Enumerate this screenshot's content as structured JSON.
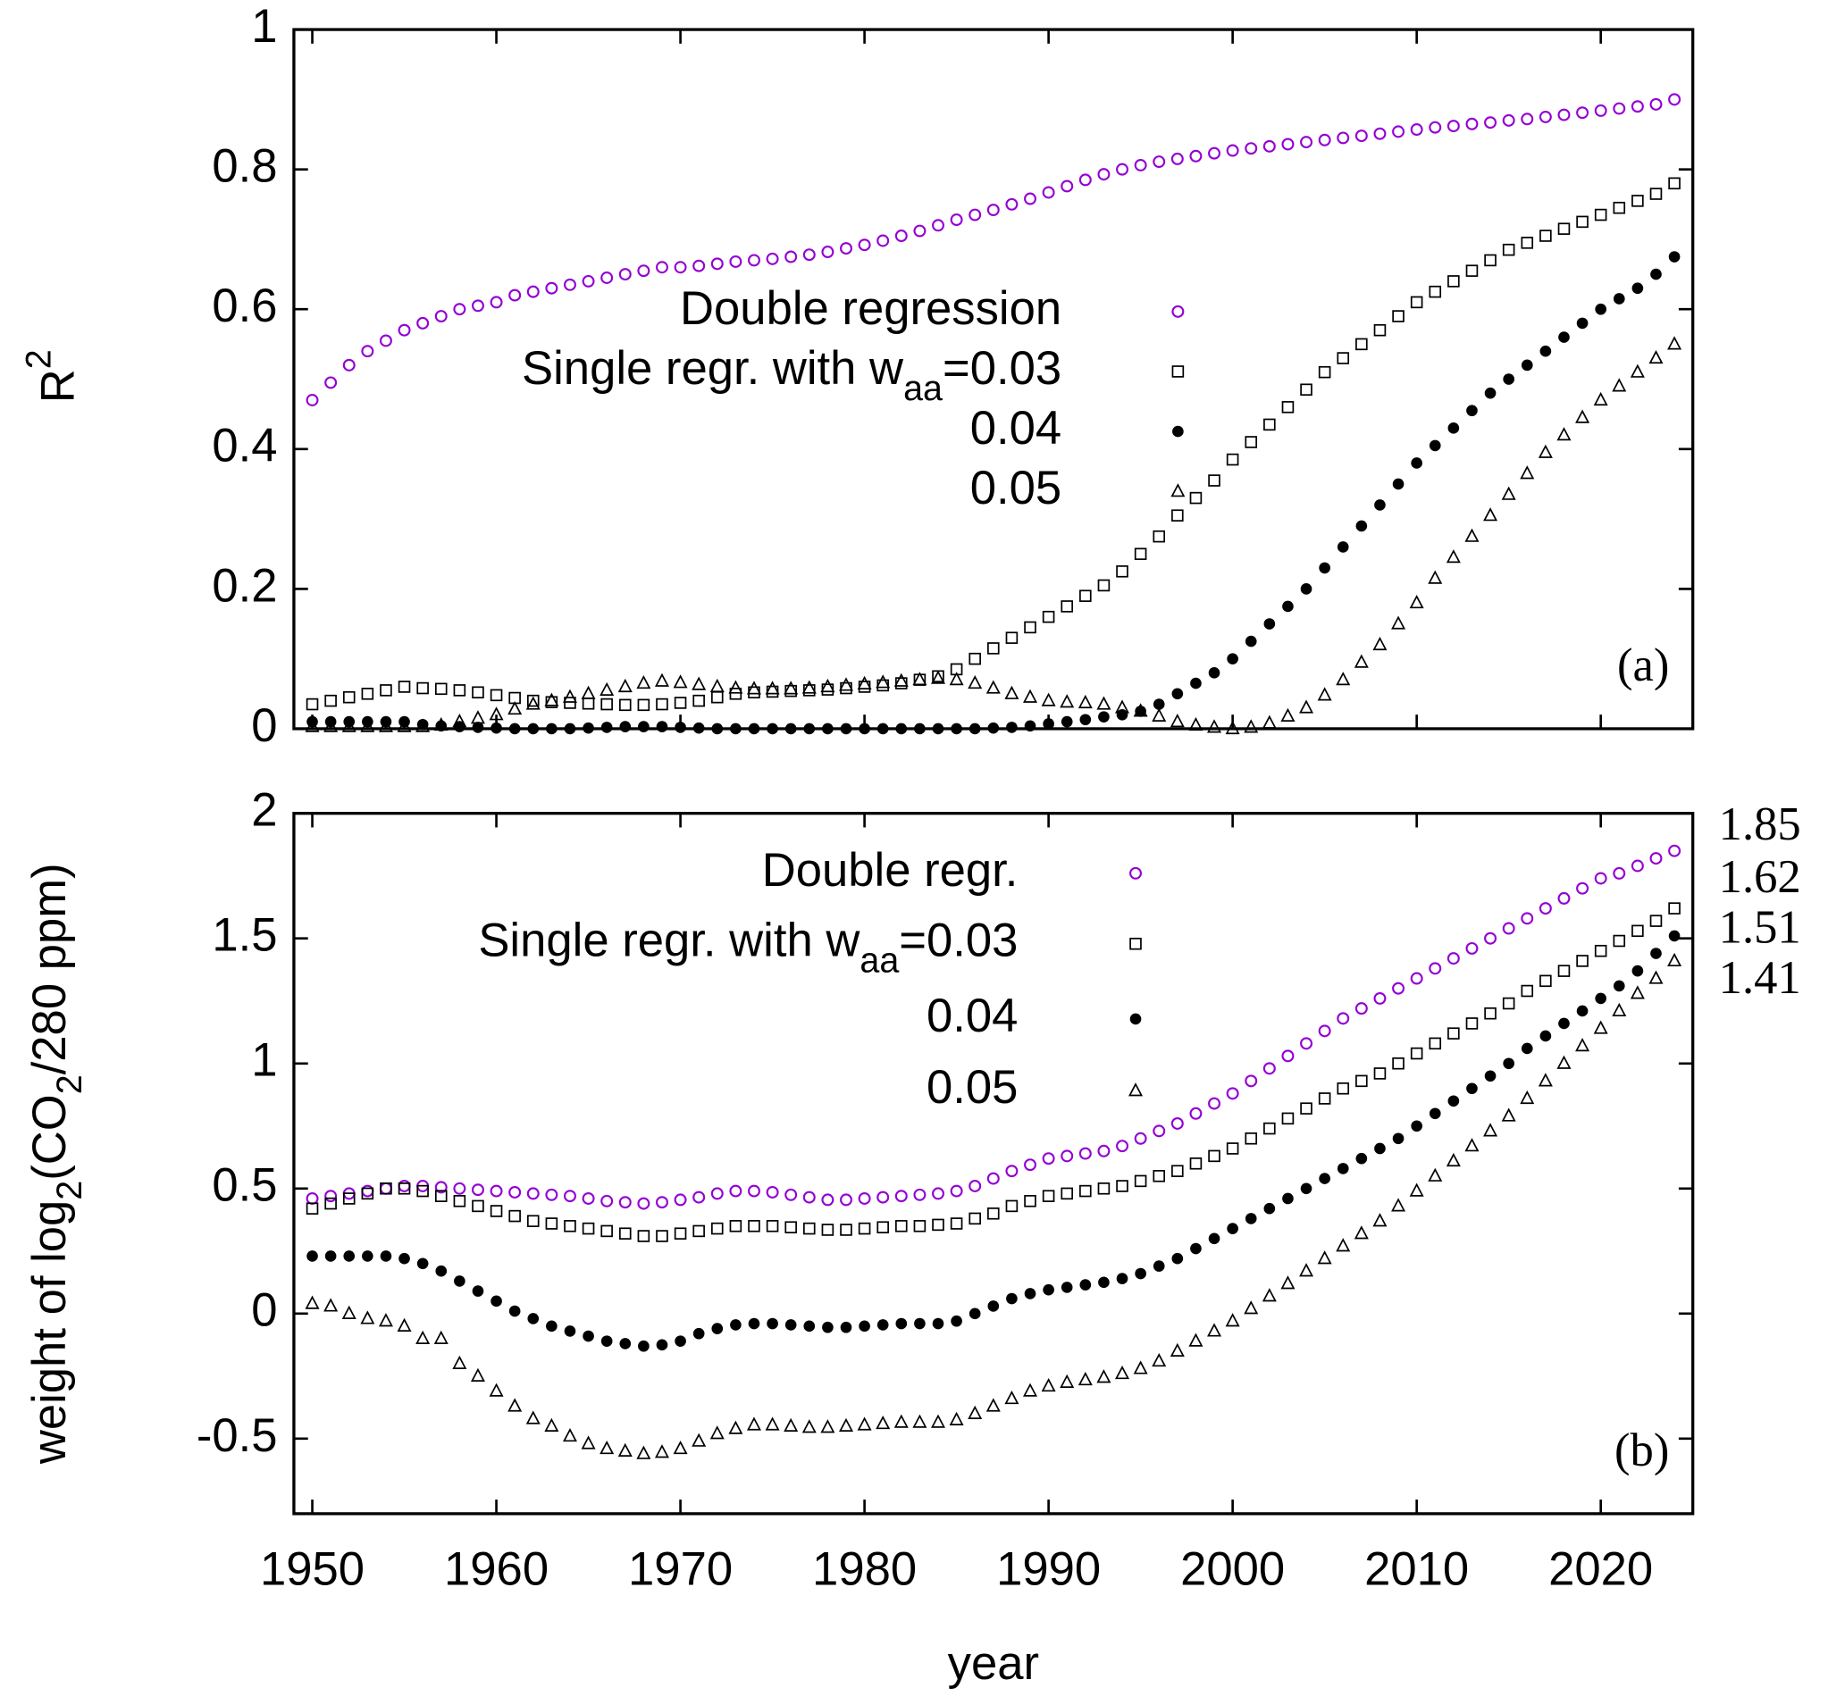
{
  "chart_data": [
    {
      "type": "scatter",
      "panel_label": "(a)",
      "ylabel": [
        {
          "text": "R"
        },
        {
          "text": "2",
          "sup": true
        }
      ],
      "x": [
        1950,
        1951,
        1952,
        1953,
        1954,
        1955,
        1956,
        1957,
        1958,
        1959,
        1960,
        1961,
        1962,
        1963,
        1964,
        1965,
        1966,
        1967,
        1968,
        1969,
        1970,
        1971,
        1972,
        1973,
        1974,
        1975,
        1976,
        1977,
        1978,
        1979,
        1980,
        1981,
        1982,
        1983,
        1984,
        1985,
        1986,
        1987,
        1988,
        1989,
        1990,
        1991,
        1992,
        1993,
        1994,
        1995,
        1996,
        1997,
        1998,
        1999,
        2000,
        2001,
        2002,
        2003,
        2004,
        2005,
        2006,
        2007,
        2008,
        2009,
        2010,
        2011,
        2012,
        2013,
        2014,
        2015,
        2016,
        2017,
        2018,
        2019,
        2020,
        2021,
        2022,
        2023,
        2024
      ],
      "xlim": [
        1949,
        2025
      ],
      "xticks": [
        1950,
        1960,
        1970,
        1980,
        1990,
        2000,
        2010,
        2020
      ],
      "xtick_labels": false,
      "ylim": [
        0,
        1
      ],
      "yticks": [
        0,
        0.2,
        0.4,
        0.6,
        0.8,
        1
      ],
      "series": [
        {
          "name": [
            {
              "text": "Double regression"
            }
          ],
          "color": "#9400d3",
          "marker": "circle",
          "values": [
            0.47,
            0.495,
            0.52,
            0.54,
            0.555,
            0.57,
            0.58,
            0.59,
            0.6,
            0.605,
            0.61,
            0.62,
            0.625,
            0.63,
            0.635,
            0.64,
            0.645,
            0.65,
            0.655,
            0.66,
            0.66,
            0.662,
            0.665,
            0.668,
            0.67,
            0.672,
            0.675,
            0.678,
            0.682,
            0.687,
            0.692,
            0.698,
            0.705,
            0.712,
            0.72,
            0.728,
            0.735,
            0.742,
            0.75,
            0.758,
            0.767,
            0.776,
            0.785,
            0.793,
            0.8,
            0.806,
            0.811,
            0.815,
            0.819,
            0.823,
            0.827,
            0.83,
            0.833,
            0.836,
            0.839,
            0.842,
            0.845,
            0.848,
            0.851,
            0.854,
            0.857,
            0.86,
            0.862,
            0.865,
            0.867,
            0.87,
            0.872,
            0.875,
            0.878,
            0.881,
            0.884,
            0.887,
            0.89,
            0.893,
            0.9
          ]
        },
        {
          "name": [
            {
              "text": "Single regr. with w"
            },
            {
              "text": "aa",
              "sub": true
            },
            {
              "text": "=0.03"
            }
          ],
          "color": "#000000",
          "marker": "square",
          "values": [
            0.035,
            0.04,
            0.045,
            0.05,
            0.055,
            0.06,
            0.058,
            0.057,
            0.055,
            0.052,
            0.048,
            0.044,
            0.04,
            0.038,
            0.037,
            0.036,
            0.035,
            0.034,
            0.034,
            0.035,
            0.037,
            0.04,
            0.045,
            0.05,
            0.052,
            0.053,
            0.054,
            0.055,
            0.056,
            0.058,
            0.06,
            0.062,
            0.065,
            0.07,
            0.075,
            0.085,
            0.1,
            0.115,
            0.13,
            0.145,
            0.16,
            0.175,
            0.19,
            0.205,
            0.225,
            0.25,
            0.275,
            0.305,
            0.33,
            0.355,
            0.385,
            0.41,
            0.435,
            0.46,
            0.485,
            0.51,
            0.53,
            0.55,
            0.57,
            0.59,
            0.61,
            0.625,
            0.64,
            0.655,
            0.67,
            0.685,
            0.695,
            0.705,
            0.715,
            0.725,
            0.735,
            0.745,
            0.755,
            0.765,
            0.78
          ]
        },
        {
          "name": [
            {
              "text": "0.04"
            }
          ],
          "color": "#000000",
          "marker": "dot",
          "values": [
            0.01,
            0.01,
            0.01,
            0.01,
            0.01,
            0.01,
            0.006,
            0.004,
            0.003,
            0.002,
            0.001,
            0,
            0,
            0,
            0,
            0.001,
            0.002,
            0.003,
            0.003,
            0.003,
            0.002,
            0.001,
            0,
            0,
            0,
            0,
            0,
            0,
            0,
            0,
            0,
            0,
            0,
            0,
            0,
            0,
            0,
            0.001,
            0.002,
            0.004,
            0.007,
            0.01,
            0.013,
            0.017,
            0.02,
            0.025,
            0.035,
            0.05,
            0.065,
            0.08,
            0.1,
            0.125,
            0.15,
            0.175,
            0.2,
            0.23,
            0.26,
            0.29,
            0.32,
            0.35,
            0.38,
            0.405,
            0.43,
            0.455,
            0.48,
            0.5,
            0.52,
            0.54,
            0.56,
            0.58,
            0.6,
            0.615,
            0.63,
            0.65,
            0.675
          ]
        },
        {
          "name": [
            {
              "text": "0.05"
            }
          ],
          "color": "#000000",
          "marker": "triangle",
          "values": [
            0.003,
            0.003,
            0.003,
            0.003,
            0.003,
            0.003,
            0.003,
            0.005,
            0.01,
            0.015,
            0.02,
            0.028,
            0.035,
            0.04,
            0.045,
            0.05,
            0.055,
            0.06,
            0.065,
            0.068,
            0.066,
            0.063,
            0.06,
            0.058,
            0.057,
            0.057,
            0.057,
            0.058,
            0.06,
            0.062,
            0.064,
            0.066,
            0.068,
            0.07,
            0.072,
            0.07,
            0.065,
            0.058,
            0.05,
            0.045,
            0.04,
            0.038,
            0.037,
            0.035,
            0.03,
            0.025,
            0.018,
            0.01,
            0.005,
            0.002,
            0,
            0.002,
            0.008,
            0.018,
            0.03,
            0.048,
            0.07,
            0.095,
            0.12,
            0.15,
            0.18,
            0.215,
            0.245,
            0.275,
            0.305,
            0.335,
            0.365,
            0.395,
            0.42,
            0.445,
            0.47,
            0.49,
            0.51,
            0.53,
            0.55
          ]
        }
      ]
    },
    {
      "type": "scatter",
      "panel_label": "(b)",
      "xlabel": "year",
      "ylabel": [
        {
          "text": "weight of log"
        },
        {
          "text": "2",
          "sub": true
        },
        {
          "text": "(CO"
        },
        {
          "text": "2",
          "sub": true
        },
        {
          "text": "/280 ppm)"
        }
      ],
      "x": [
        1950,
        1951,
        1952,
        1953,
        1954,
        1955,
        1956,
        1957,
        1958,
        1959,
        1960,
        1961,
        1962,
        1963,
        1964,
        1965,
        1966,
        1967,
        1968,
        1969,
        1970,
        1971,
        1972,
        1973,
        1974,
        1975,
        1976,
        1977,
        1978,
        1979,
        1980,
        1981,
        1982,
        1983,
        1984,
        1985,
        1986,
        1987,
        1988,
        1989,
        1990,
        1991,
        1992,
        1993,
        1994,
        1995,
        1996,
        1997,
        1998,
        1999,
        2000,
        2001,
        2002,
        2003,
        2004,
        2005,
        2006,
        2007,
        2008,
        2009,
        2010,
        2011,
        2012,
        2013,
        2014,
        2015,
        2016,
        2017,
        2018,
        2019,
        2020,
        2021,
        2022,
        2023,
        2024
      ],
      "xlim": [
        1949,
        2025
      ],
      "xticks": [
        1950,
        1960,
        1970,
        1980,
        1990,
        2000,
        2010,
        2020
      ],
      "xtick_labels": true,
      "ylim": [
        -0.8,
        2
      ],
      "yticks": [
        -0.5,
        0,
        0.5,
        1,
        1.5,
        2
      ],
      "series": [
        {
          "name": [
            {
              "text": "Double regr."
            }
          ],
          "color": "#9400d3",
          "marker": "circle",
          "end_label": "1.85",
          "end_label_color": "#800080",
          "values": [
            0.46,
            0.47,
            0.48,
            0.49,
            0.5,
            0.51,
            0.51,
            0.505,
            0.5,
            0.495,
            0.49,
            0.485,
            0.48,
            0.475,
            0.47,
            0.46,
            0.45,
            0.445,
            0.44,
            0.445,
            0.455,
            0.465,
            0.48,
            0.49,
            0.49,
            0.485,
            0.475,
            0.465,
            0.455,
            0.455,
            0.46,
            0.465,
            0.47,
            0.475,
            0.48,
            0.49,
            0.51,
            0.54,
            0.57,
            0.595,
            0.62,
            0.63,
            0.64,
            0.65,
            0.67,
            0.7,
            0.73,
            0.76,
            0.8,
            0.84,
            0.88,
            0.93,
            0.98,
            1.03,
            1.08,
            1.13,
            1.18,
            1.22,
            1.26,
            1.3,
            1.34,
            1.38,
            1.42,
            1.46,
            1.5,
            1.54,
            1.58,
            1.62,
            1.66,
            1.7,
            1.74,
            1.76,
            1.79,
            1.82,
            1.85
          ]
        },
        {
          "name": [
            {
              "text": "Single regr. with w"
            },
            {
              "text": "aa",
              "sub": true
            },
            {
              "text": "=0.03"
            }
          ],
          "color": "#000000",
          "marker": "square",
          "end_label": "1.62",
          "end_label_color": "#000000",
          "values": [
            0.42,
            0.44,
            0.46,
            0.48,
            0.5,
            0.5,
            0.49,
            0.47,
            0.45,
            0.43,
            0.41,
            0.39,
            0.37,
            0.36,
            0.35,
            0.34,
            0.33,
            0.32,
            0.31,
            0.31,
            0.32,
            0.33,
            0.34,
            0.35,
            0.35,
            0.35,
            0.345,
            0.34,
            0.335,
            0.335,
            0.34,
            0.345,
            0.35,
            0.35,
            0.355,
            0.36,
            0.38,
            0.4,
            0.43,
            0.45,
            0.47,
            0.48,
            0.49,
            0.5,
            0.51,
            0.53,
            0.55,
            0.57,
            0.6,
            0.63,
            0.66,
            0.7,
            0.74,
            0.78,
            0.82,
            0.86,
            0.9,
            0.93,
            0.96,
            1,
            1.04,
            1.08,
            1.12,
            1.16,
            1.2,
            1.24,
            1.29,
            1.33,
            1.37,
            1.41,
            1.45,
            1.49,
            1.53,
            1.57,
            1.62
          ]
        },
        {
          "name": [
            {
              "text": "0.04"
            }
          ],
          "color": "#000000",
          "marker": "dot",
          "end_label": "1.51",
          "end_label_color": "#000000",
          "values": [
            0.23,
            0.23,
            0.23,
            0.23,
            0.23,
            0.22,
            0.2,
            0.17,
            0.13,
            0.09,
            0.05,
            0.01,
            -0.02,
            -0.05,
            -0.07,
            -0.09,
            -0.11,
            -0.12,
            -0.13,
            -0.125,
            -0.11,
            -0.08,
            -0.06,
            -0.045,
            -0.04,
            -0.04,
            -0.045,
            -0.05,
            -0.055,
            -0.055,
            -0.05,
            -0.045,
            -0.04,
            -0.04,
            -0.04,
            -0.03,
            0,
            0.03,
            0.06,
            0.08,
            0.095,
            0.105,
            0.115,
            0.125,
            0.14,
            0.16,
            0.19,
            0.22,
            0.26,
            0.3,
            0.34,
            0.38,
            0.42,
            0.46,
            0.5,
            0.54,
            0.58,
            0.62,
            0.66,
            0.7,
            0.75,
            0.8,
            0.85,
            0.9,
            0.95,
            1,
            1.06,
            1.11,
            1.16,
            1.21,
            1.26,
            1.31,
            1.37,
            1.44,
            1.51
          ]
        },
        {
          "name": [
            {
              "text": "0.05"
            }
          ],
          "color": "#000000",
          "marker": "triangle",
          "end_label": "1.41",
          "end_label_color": "#000000",
          "values": [
            0.04,
            0.03,
            0,
            -0.02,
            -0.03,
            -0.05,
            -0.1,
            -0.1,
            -0.2,
            -0.25,
            -0.31,
            -0.37,
            -0.42,
            -0.45,
            -0.49,
            -0.52,
            -0.54,
            -0.55,
            -0.56,
            -0.555,
            -0.54,
            -0.51,
            -0.48,
            -0.46,
            -0.445,
            -0.445,
            -0.45,
            -0.455,
            -0.455,
            -0.45,
            -0.445,
            -0.44,
            -0.435,
            -0.435,
            -0.435,
            -0.425,
            -0.4,
            -0.37,
            -0.34,
            -0.31,
            -0.29,
            -0.275,
            -0.265,
            -0.255,
            -0.24,
            -0.22,
            -0.19,
            -0.15,
            -0.11,
            -0.07,
            -0.03,
            0.02,
            0.07,
            0.12,
            0.17,
            0.22,
            0.27,
            0.32,
            0.37,
            0.43,
            0.49,
            0.55,
            0.61,
            0.67,
            0.73,
            0.79,
            0.86,
            0.93,
            1,
            1.07,
            1.14,
            1.21,
            1.28,
            1.34,
            1.41
          ]
        }
      ]
    }
  ]
}
